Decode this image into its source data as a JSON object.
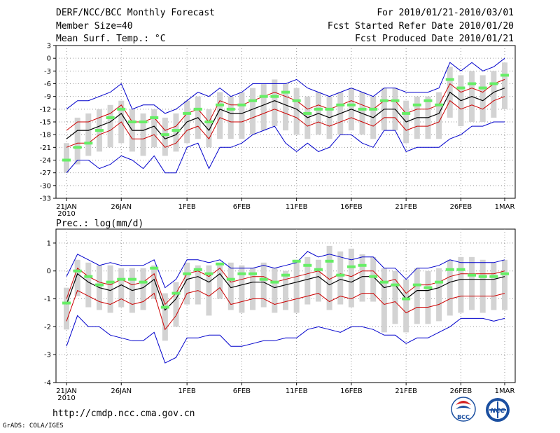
{
  "header": {
    "title": "DERF/NCC/BCC Monthly Forecast",
    "member_size": "Member Size=40",
    "variable": "Mean Surf. Temp.: °C",
    "period": "For 2010/01/21-2010/03/01",
    "start_date": "Fcst Started Refer Date 2010/01/20",
    "produced_date": "Fcst Produced Date 2010/01/21"
  },
  "footer": {
    "url": "http://cmdp.ncc.cma.gov.cn",
    "credit": "GrADS: COLA/IGES"
  },
  "logos": {
    "bcc": "BCC",
    "ncc": "NCC"
  },
  "colors": {
    "bar": "#d3d3d3",
    "obs": "#66ee66",
    "mean": "#000000",
    "inner_band": "#cc0000",
    "outer_band": "#0000cc",
    "grid": "#999999"
  },
  "chart_data": [
    {
      "type": "line",
      "title": "Mean Surf. Temp.: °C",
      "ylabel": "°C",
      "ylim": [
        -33,
        3
      ],
      "yticks": [
        3,
        0,
        -3,
        -6,
        -9,
        -12,
        -15,
        -18,
        -21,
        -24,
        -27,
        -30,
        -33
      ],
      "ytick_labels": [
        "3",
        "0",
        "-3",
        "-6",
        "-9",
        "-12",
        "-15",
        "-18",
        "-21",
        "-24",
        "-27",
        "-30",
        "-33"
      ],
      "xticks": [
        0,
        5,
        11,
        16,
        21,
        26,
        31,
        36,
        40
      ],
      "xtick_labels": [
        "21JAN",
        "26JAN",
        "1FEB",
        "6FEB",
        "11FEB",
        "16FEB",
        "21FEB",
        "26FEB",
        "1MAR"
      ],
      "x_sub_label": "2010",
      "x": [
        0,
        1,
        2,
        3,
        4,
        5,
        6,
        7,
        8,
        9,
        10,
        11,
        12,
        13,
        14,
        15,
        16,
        17,
        18,
        19,
        20,
        21,
        22,
        23,
        24,
        25,
        26,
        27,
        28,
        29,
        30,
        31,
        32,
        33,
        34,
        35,
        36,
        37,
        38,
        39,
        40
      ],
      "series": [
        {
          "name": "ensemble mean",
          "values": [
            -19,
            -17,
            -17,
            -16,
            -15,
            -13,
            -17,
            -17,
            -16,
            -19,
            -18,
            -15,
            -14,
            -17,
            -12,
            -13,
            -13,
            -12,
            -11,
            -10,
            -11,
            -12,
            -14,
            -13,
            -14,
            -13,
            -12,
            -13,
            -14,
            -12,
            -12,
            -15,
            -14,
            -14,
            -13,
            -8,
            -10,
            -9,
            -10,
            -8,
            -7
          ]
        },
        {
          "name": "upper band (red)",
          "values": [
            -17,
            -15,
            -15,
            -14,
            -13,
            -11,
            -15,
            -15,
            -14,
            -17,
            -16,
            -13,
            -12,
            -15,
            -10,
            -11,
            -11,
            -10,
            -9,
            -8,
            -9,
            -10,
            -12,
            -11,
            -12,
            -11,
            -10,
            -11,
            -12,
            -10,
            -10,
            -13,
            -12,
            -12,
            -11,
            -6,
            -8,
            -7,
            -8,
            -6,
            -5
          ]
        },
        {
          "name": "lower band (red)",
          "values": [
            -21,
            -20,
            -20,
            -18,
            -17,
            -15,
            -19,
            -19,
            -18,
            -21,
            -20,
            -17,
            -16,
            -19,
            -14,
            -15,
            -15,
            -14,
            -13,
            -12,
            -13,
            -14,
            -16,
            -15,
            -16,
            -15,
            -14,
            -15,
            -16,
            -14,
            -14,
            -17,
            -16,
            -16,
            -15,
            -10,
            -12,
            -11,
            -12,
            -10,
            -9
          ]
        },
        {
          "name": "maximum (blue)",
          "values": [
            -12,
            -10,
            -10,
            -9,
            -8,
            -6,
            -12,
            -11,
            -11,
            -13,
            -12,
            -10,
            -8,
            -9,
            -7,
            -9,
            -8,
            -6,
            -6,
            -6,
            -6,
            -5,
            -7,
            -8,
            -9,
            -8,
            -7,
            -8,
            -9,
            -7,
            -7,
            -8,
            -8,
            -8,
            -7,
            -1,
            -3,
            -1,
            -3,
            -2,
            0
          ]
        },
        {
          "name": "minimum (blue)",
          "values": [
            -27,
            -24,
            -24,
            -26,
            -25,
            -23,
            -24,
            -26,
            -23,
            -27,
            -27,
            -21,
            -20,
            -26,
            -21,
            -21,
            -20,
            -18,
            -17,
            -16,
            -20,
            -22,
            -20,
            -22,
            -21,
            -18,
            -18,
            -20,
            -21,
            -17,
            -17,
            -22,
            -21,
            -21,
            -21,
            -19,
            -18,
            -16,
            -16,
            -15,
            -15
          ]
        },
        {
          "name": "observed (green)",
          "values": [
            -24,
            -21,
            -20,
            -17,
            -14,
            -12,
            -15,
            -15,
            -14,
            -18,
            -17,
            -13,
            -12,
            -15,
            -11,
            -12,
            -11,
            -10,
            -9,
            -9,
            -8,
            -10,
            -13,
            -12,
            -12,
            -11,
            -11,
            -12,
            -12,
            -10,
            -10,
            -13,
            -11,
            -10,
            -11,
            -5,
            -7,
            -6,
            -7,
            -6,
            -4
          ]
        }
      ],
      "spread_bars": {
        "name": "member range (grey)",
        "low": [
          -27,
          -25,
          -23,
          -22,
          -21,
          -20,
          -22,
          -23,
          -21,
          -23,
          -22,
          -20,
          -19,
          -21,
          -19,
          -19,
          -19,
          -18,
          -17,
          -16,
          -17,
          -18,
          -19,
          -18,
          -19,
          -18,
          -17,
          -18,
          -19,
          -17,
          -17,
          -20,
          -19,
          -19,
          -19,
          -14,
          -16,
          -15,
          -15,
          -14,
          -12
        ],
        "high": [
          -20,
          -14,
          -13,
          -12,
          -11,
          -10,
          -12,
          -13,
          -12,
          -14,
          -13,
          -10,
          -9,
          -12,
          -8,
          -9,
          -8,
          -7,
          -6,
          -5,
          -6,
          -7,
          -9,
          -8,
          -9,
          -8,
          -7,
          -8,
          -9,
          -7,
          -7,
          -10,
          -9,
          -9,
          -8,
          -2,
          -4,
          -3,
          -4,
          -3,
          -1
        ]
      }
    },
    {
      "type": "line",
      "title": "Prec.: log(mm/d)",
      "ylabel": "log(mm/d)",
      "ylim": [
        -4,
        1.5
      ],
      "yticks": [
        1,
        0,
        -1,
        -2,
        -3,
        -4
      ],
      "ytick_labels": [
        "1",
        "0",
        "-1",
        "-2",
        "-3",
        "-4"
      ],
      "xticks": [
        0,
        5,
        11,
        16,
        21,
        26,
        31,
        36,
        40
      ],
      "xtick_labels": [
        "21JAN",
        "26JAN",
        "1FEB",
        "6FEB",
        "11FEB",
        "16FEB",
        "21FEB",
        "26FEB",
        "1MAR"
      ],
      "x_sub_label": "2010",
      "x": [
        0,
        1,
        2,
        3,
        4,
        5,
        6,
        7,
        8,
        9,
        10,
        11,
        12,
        13,
        14,
        15,
        16,
        17,
        18,
        19,
        20,
        21,
        22,
        23,
        24,
        25,
        26,
        27,
        28,
        29,
        30,
        31,
        32,
        33,
        34,
        35,
        36,
        37,
        38,
        39,
        40
      ],
      "series": [
        {
          "name": "ensemble mean",
          "values": [
            -1.2,
            -0.1,
            -0.4,
            -0.6,
            -0.7,
            -0.5,
            -0.7,
            -0.6,
            -0.3,
            -1.4,
            -1.0,
            -0.3,
            -0.2,
            -0.4,
            -0.1,
            -0.6,
            -0.5,
            -0.4,
            -0.4,
            -0.6,
            -0.5,
            -0.4,
            -0.3,
            -0.2,
            -0.5,
            -0.3,
            -0.4,
            -0.2,
            -0.2,
            -0.6,
            -0.5,
            -1.0,
            -0.7,
            -0.7,
            -0.6,
            -0.4,
            -0.3,
            -0.3,
            -0.3,
            -0.3,
            -0.2
          ]
        },
        {
          "name": "upper band (red)",
          "values": [
            -1.0,
            0.1,
            -0.2,
            -0.4,
            -0.5,
            -0.3,
            -0.5,
            -0.4,
            -0.1,
            -1.2,
            -0.8,
            -0.1,
            0.0,
            -0.2,
            0.1,
            -0.4,
            -0.3,
            -0.2,
            -0.2,
            -0.4,
            -0.3,
            -0.2,
            -0.1,
            0.0,
            -0.3,
            -0.1,
            -0.2,
            0.0,
            0.0,
            -0.4,
            -0.3,
            -0.8,
            -0.5,
            -0.5,
            -0.4,
            -0.2,
            -0.1,
            -0.1,
            -0.1,
            -0.1,
            0.0
          ]
        },
        {
          "name": "lower band (red)",
          "values": [
            -1.8,
            -0.7,
            -0.9,
            -1.1,
            -1.2,
            -1.0,
            -1.2,
            -1.1,
            -0.8,
            -2.1,
            -1.6,
            -0.8,
            -0.7,
            -0.9,
            -0.6,
            -1.2,
            -1.1,
            -1.0,
            -1.0,
            -1.2,
            -1.1,
            -1.0,
            -0.9,
            -0.8,
            -1.1,
            -0.9,
            -1.0,
            -0.8,
            -0.8,
            -1.2,
            -1.1,
            -1.5,
            -1.3,
            -1.3,
            -1.2,
            -1.0,
            -0.9,
            -0.9,
            -0.9,
            -0.9,
            -0.8
          ]
        },
        {
          "name": "maximum (blue)",
          "values": [
            -0.2,
            0.6,
            0.4,
            0.2,
            0.3,
            0.2,
            0.2,
            0.2,
            0.4,
            -0.6,
            -0.3,
            0.4,
            0.4,
            0.3,
            0.4,
            0.1,
            0.1,
            0.1,
            0.2,
            0.1,
            0.2,
            0.3,
            0.7,
            0.5,
            0.6,
            0.5,
            0.4,
            0.5,
            0.5,
            0.1,
            0.1,
            -0.3,
            0.1,
            0.1,
            0.2,
            0.4,
            0.3,
            0.3,
            0.3,
            0.3,
            0.4
          ]
        },
        {
          "name": "minimum (blue)",
          "values": [
            -2.7,
            -1.6,
            -2.0,
            -2.0,
            -2.3,
            -2.4,
            -2.5,
            -2.5,
            -2.2,
            -3.3,
            -3.1,
            -2.4,
            -2.4,
            -2.3,
            -2.3,
            -2.7,
            -2.7,
            -2.6,
            -2.5,
            -2.5,
            -2.4,
            -2.4,
            -2.1,
            -2.0,
            -2.1,
            -2.2,
            -2.0,
            -2.0,
            -2.1,
            -2.3,
            -2.3,
            -2.6,
            -2.4,
            -2.4,
            -2.2,
            -2.0,
            -1.7,
            -1.7,
            -1.7,
            -1.8,
            -1.7
          ]
        },
        {
          "name": "observed (green)",
          "values": [
            -1.15,
            0.0,
            -0.2,
            -0.5,
            -0.4,
            -0.3,
            -0.3,
            -0.4,
            0.1,
            -1.3,
            -0.8,
            -0.1,
            0.05,
            -0.1,
            0.25,
            -0.3,
            -0.1,
            -0.1,
            -0.3,
            -0.4,
            -0.15,
            0.35,
            0.2,
            0.05,
            0.35,
            -0.15,
            0.15,
            0.2,
            -0.2,
            -0.4,
            -0.5,
            -1.0,
            -0.5,
            -0.6,
            -0.4,
            0.05,
            0.05,
            -0.15,
            -0.2,
            -0.2,
            -0.1
          ]
        }
      ],
      "spread_bars": {
        "name": "member range (grey)",
        "low": [
          -2.1,
          -0.9,
          -1.3,
          -1.4,
          -1.5,
          -1.3,
          -1.5,
          -1.4,
          -1.0,
          -2.5,
          -2.0,
          -1.2,
          -1.2,
          -1.6,
          -1.0,
          -1.4,
          -1.5,
          -1.4,
          -1.3,
          -1.5,
          -1.4,
          -1.5,
          -1.2,
          -1.1,
          -1.4,
          -1.2,
          -1.3,
          -1.1,
          -1.1,
          -2.2,
          -1.9,
          -2.2,
          -1.9,
          -1.9,
          -1.8,
          -1.6,
          -1.5,
          -1.4,
          -1.5,
          -1.4,
          -1.4
        ],
        "high": [
          -0.6,
          0.4,
          0.3,
          0.2,
          0.2,
          0.1,
          0.1,
          0.1,
          0.2,
          -0.8,
          -0.4,
          0.3,
          0.2,
          0.2,
          0.2,
          0.3,
          0.2,
          0.1,
          0.3,
          0.1,
          0.0,
          0.4,
          0.5,
          0.4,
          0.9,
          0.7,
          0.8,
          0.6,
          0.5,
          0.1,
          0.0,
          -0.3,
          0.1,
          0.0,
          0.1,
          0.4,
          0.5,
          0.5,
          0.4,
          0.3,
          0.4
        ]
      }
    }
  ]
}
